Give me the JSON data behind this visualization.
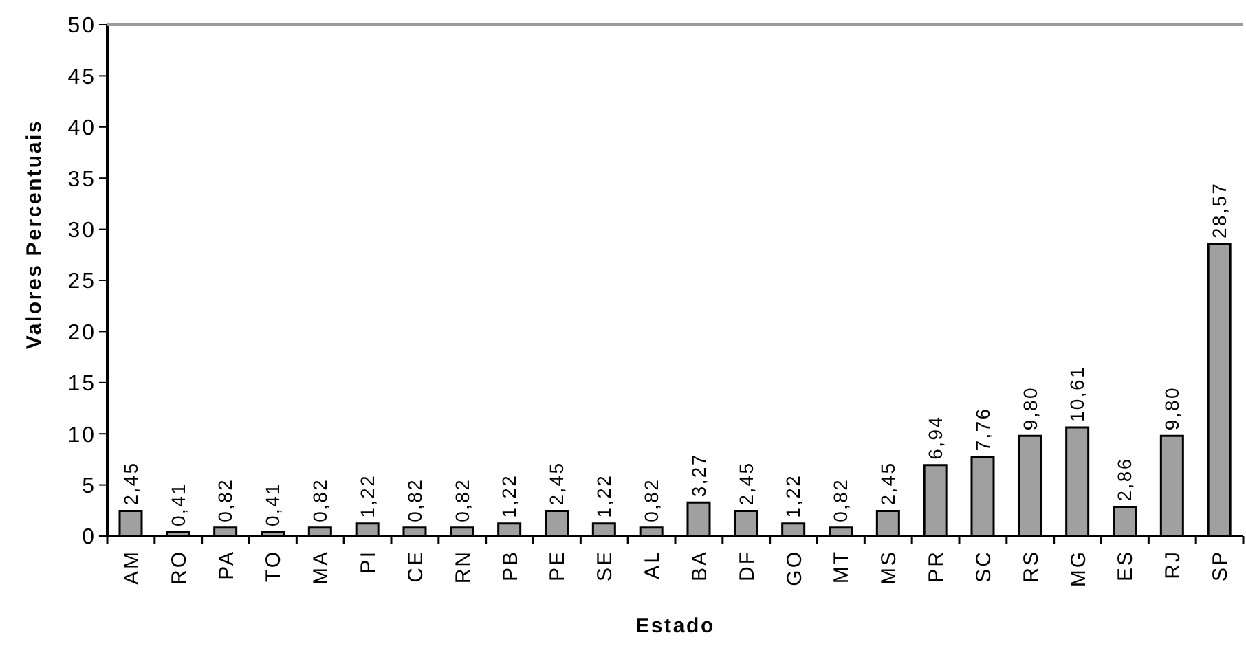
{
  "chart_data": {
    "type": "bar",
    "xlabel": "Estado",
    "ylabel": "Valores Percentuais",
    "categories": [
      "AM",
      "RO",
      "PA",
      "TO",
      "MA",
      "PI",
      "CE",
      "RN",
      "PB",
      "PE",
      "SE",
      "AL",
      "BA",
      "DF",
      "GO",
      "MT",
      "MS",
      "PR",
      "SC",
      "RS",
      "MG",
      "ES",
      "RJ",
      "SP"
    ],
    "values": [
      2.45,
      0.41,
      0.82,
      0.41,
      0.82,
      1.22,
      0.82,
      0.82,
      1.22,
      2.45,
      1.22,
      0.82,
      3.27,
      2.45,
      1.22,
      0.82,
      2.45,
      6.94,
      7.76,
      9.8,
      10.61,
      2.86,
      9.8,
      28.57
    ],
    "value_labels": [
      "2,45",
      "0,41",
      "0,82",
      "0,41",
      "0,82",
      "1,22",
      "0,82",
      "0,82",
      "1,22",
      "2,45",
      "1,22",
      "0,82",
      "3,27",
      "2,45",
      "1,22",
      "0,82",
      "2,45",
      "6,94",
      "7,76",
      "9,80",
      "10,61",
      "2,86",
      "9,80",
      "28,57"
    ],
    "color": "#a0a0a0",
    "ylim": [
      0,
      50
    ],
    "yticks": [
      0,
      5,
      10,
      15,
      20,
      25,
      30,
      35,
      40,
      45,
      50
    ]
  }
}
